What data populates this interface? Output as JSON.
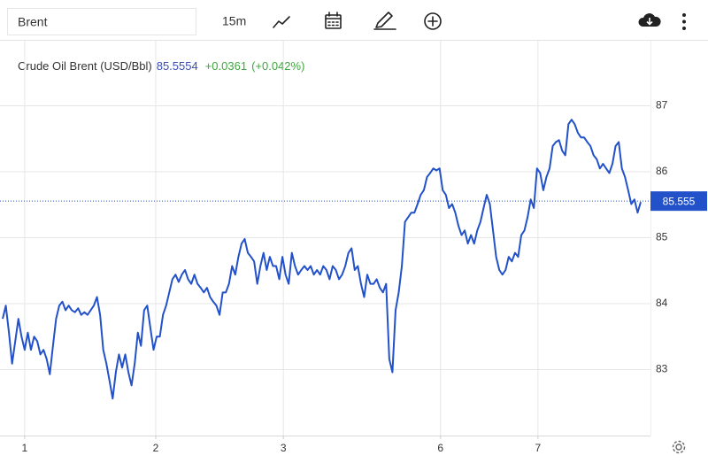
{
  "toolbar": {
    "symbol": "Brent",
    "interval": "15m"
  },
  "chart_data": {
    "type": "line",
    "title": "Crude Oil Brent (USD/Bbl)",
    "last": "85.5554",
    "change": "+0.0361",
    "change_pct": "(+0.042%)",
    "color": "#2251c9",
    "current_price": 85.555,
    "values": [
      83.77,
      83.97,
      83.56,
      83.09,
      83.43,
      83.77,
      83.5,
      83.3,
      83.56,
      83.3,
      83.5,
      83.43,
      83.23,
      83.3,
      83.16,
      82.93,
      83.36,
      83.77,
      83.97,
      84.03,
      83.9,
      83.97,
      83.9,
      83.87,
      83.93,
      83.83,
      83.87,
      83.83,
      83.9,
      83.97,
      84.1,
      83.83,
      83.3,
      83.09,
      82.83,
      82.56,
      82.96,
      83.23,
      83.03,
      83.23,
      82.96,
      82.76,
      83.09,
      83.56,
      83.36,
      83.9,
      83.97,
      83.63,
      83.3,
      83.5,
      83.5,
      83.83,
      83.97,
      84.17,
      84.37,
      84.44,
      84.33,
      84.44,
      84.51,
      84.37,
      84.3,
      84.44,
      84.3,
      84.24,
      84.17,
      84.24,
      84.1,
      84.03,
      83.97,
      83.83,
      84.17,
      84.17,
      84.3,
      84.57,
      84.44,
      84.71,
      84.91,
      84.98,
      84.77,
      84.71,
      84.64,
      84.3,
      84.57,
      84.77,
      84.51,
      84.71,
      84.57,
      84.57,
      84.37,
      84.71,
      84.44,
      84.3,
      84.77,
      84.57,
      84.44,
      84.51,
      84.57,
      84.51,
      84.57,
      84.44,
      84.51,
      84.44,
      84.57,
      84.51,
      84.37,
      84.57,
      84.51,
      84.37,
      84.44,
      84.57,
      84.77,
      84.84,
      84.51,
      84.57,
      84.3,
      84.1,
      84.44,
      84.3,
      84.3,
      84.37,
      84.24,
      84.17,
      84.3,
      83.16,
      82.96,
      83.9,
      84.17,
      84.57,
      85.24,
      85.31,
      85.38,
      85.38,
      85.51,
      85.65,
      85.72,
      85.92,
      85.98,
      86.05,
      86.02,
      86.05,
      85.72,
      85.65,
      85.45,
      85.51,
      85.38,
      85.18,
      85.04,
      85.11,
      84.91,
      85.04,
      84.91,
      85.11,
      85.24,
      85.45,
      85.65,
      85.51,
      85.11,
      84.71,
      84.51,
      84.44,
      84.51,
      84.71,
      84.64,
      84.77,
      84.71,
      85.04,
      85.11,
      85.31,
      85.58,
      85.45,
      86.05,
      85.98,
      85.72,
      85.92,
      86.05,
      86.39,
      86.45,
      86.48,
      86.32,
      86.25,
      86.72,
      86.79,
      86.72,
      86.59,
      86.52,
      86.52,
      86.45,
      86.39,
      86.25,
      86.19,
      86.05,
      86.12,
      86.05,
      85.98,
      86.12,
      86.39,
      86.45,
      86.05,
      85.92,
      85.72,
      85.51,
      85.58,
      85.38,
      85.54
    ],
    "xlim": [
      -0.85,
      206.1
    ],
    "xticks": [
      {
        "value": 7,
        "label": "1"
      },
      {
        "value": 48.7,
        "label": "2"
      },
      {
        "value": 89.3,
        "label": "3"
      },
      {
        "value": 139.3,
        "label": "6"
      },
      {
        "value": 170.3,
        "label": "7"
      }
    ],
    "ylim": [
      82,
      88
    ],
    "yticks": [
      83,
      84,
      85,
      86,
      87
    ],
    "grid": true
  }
}
